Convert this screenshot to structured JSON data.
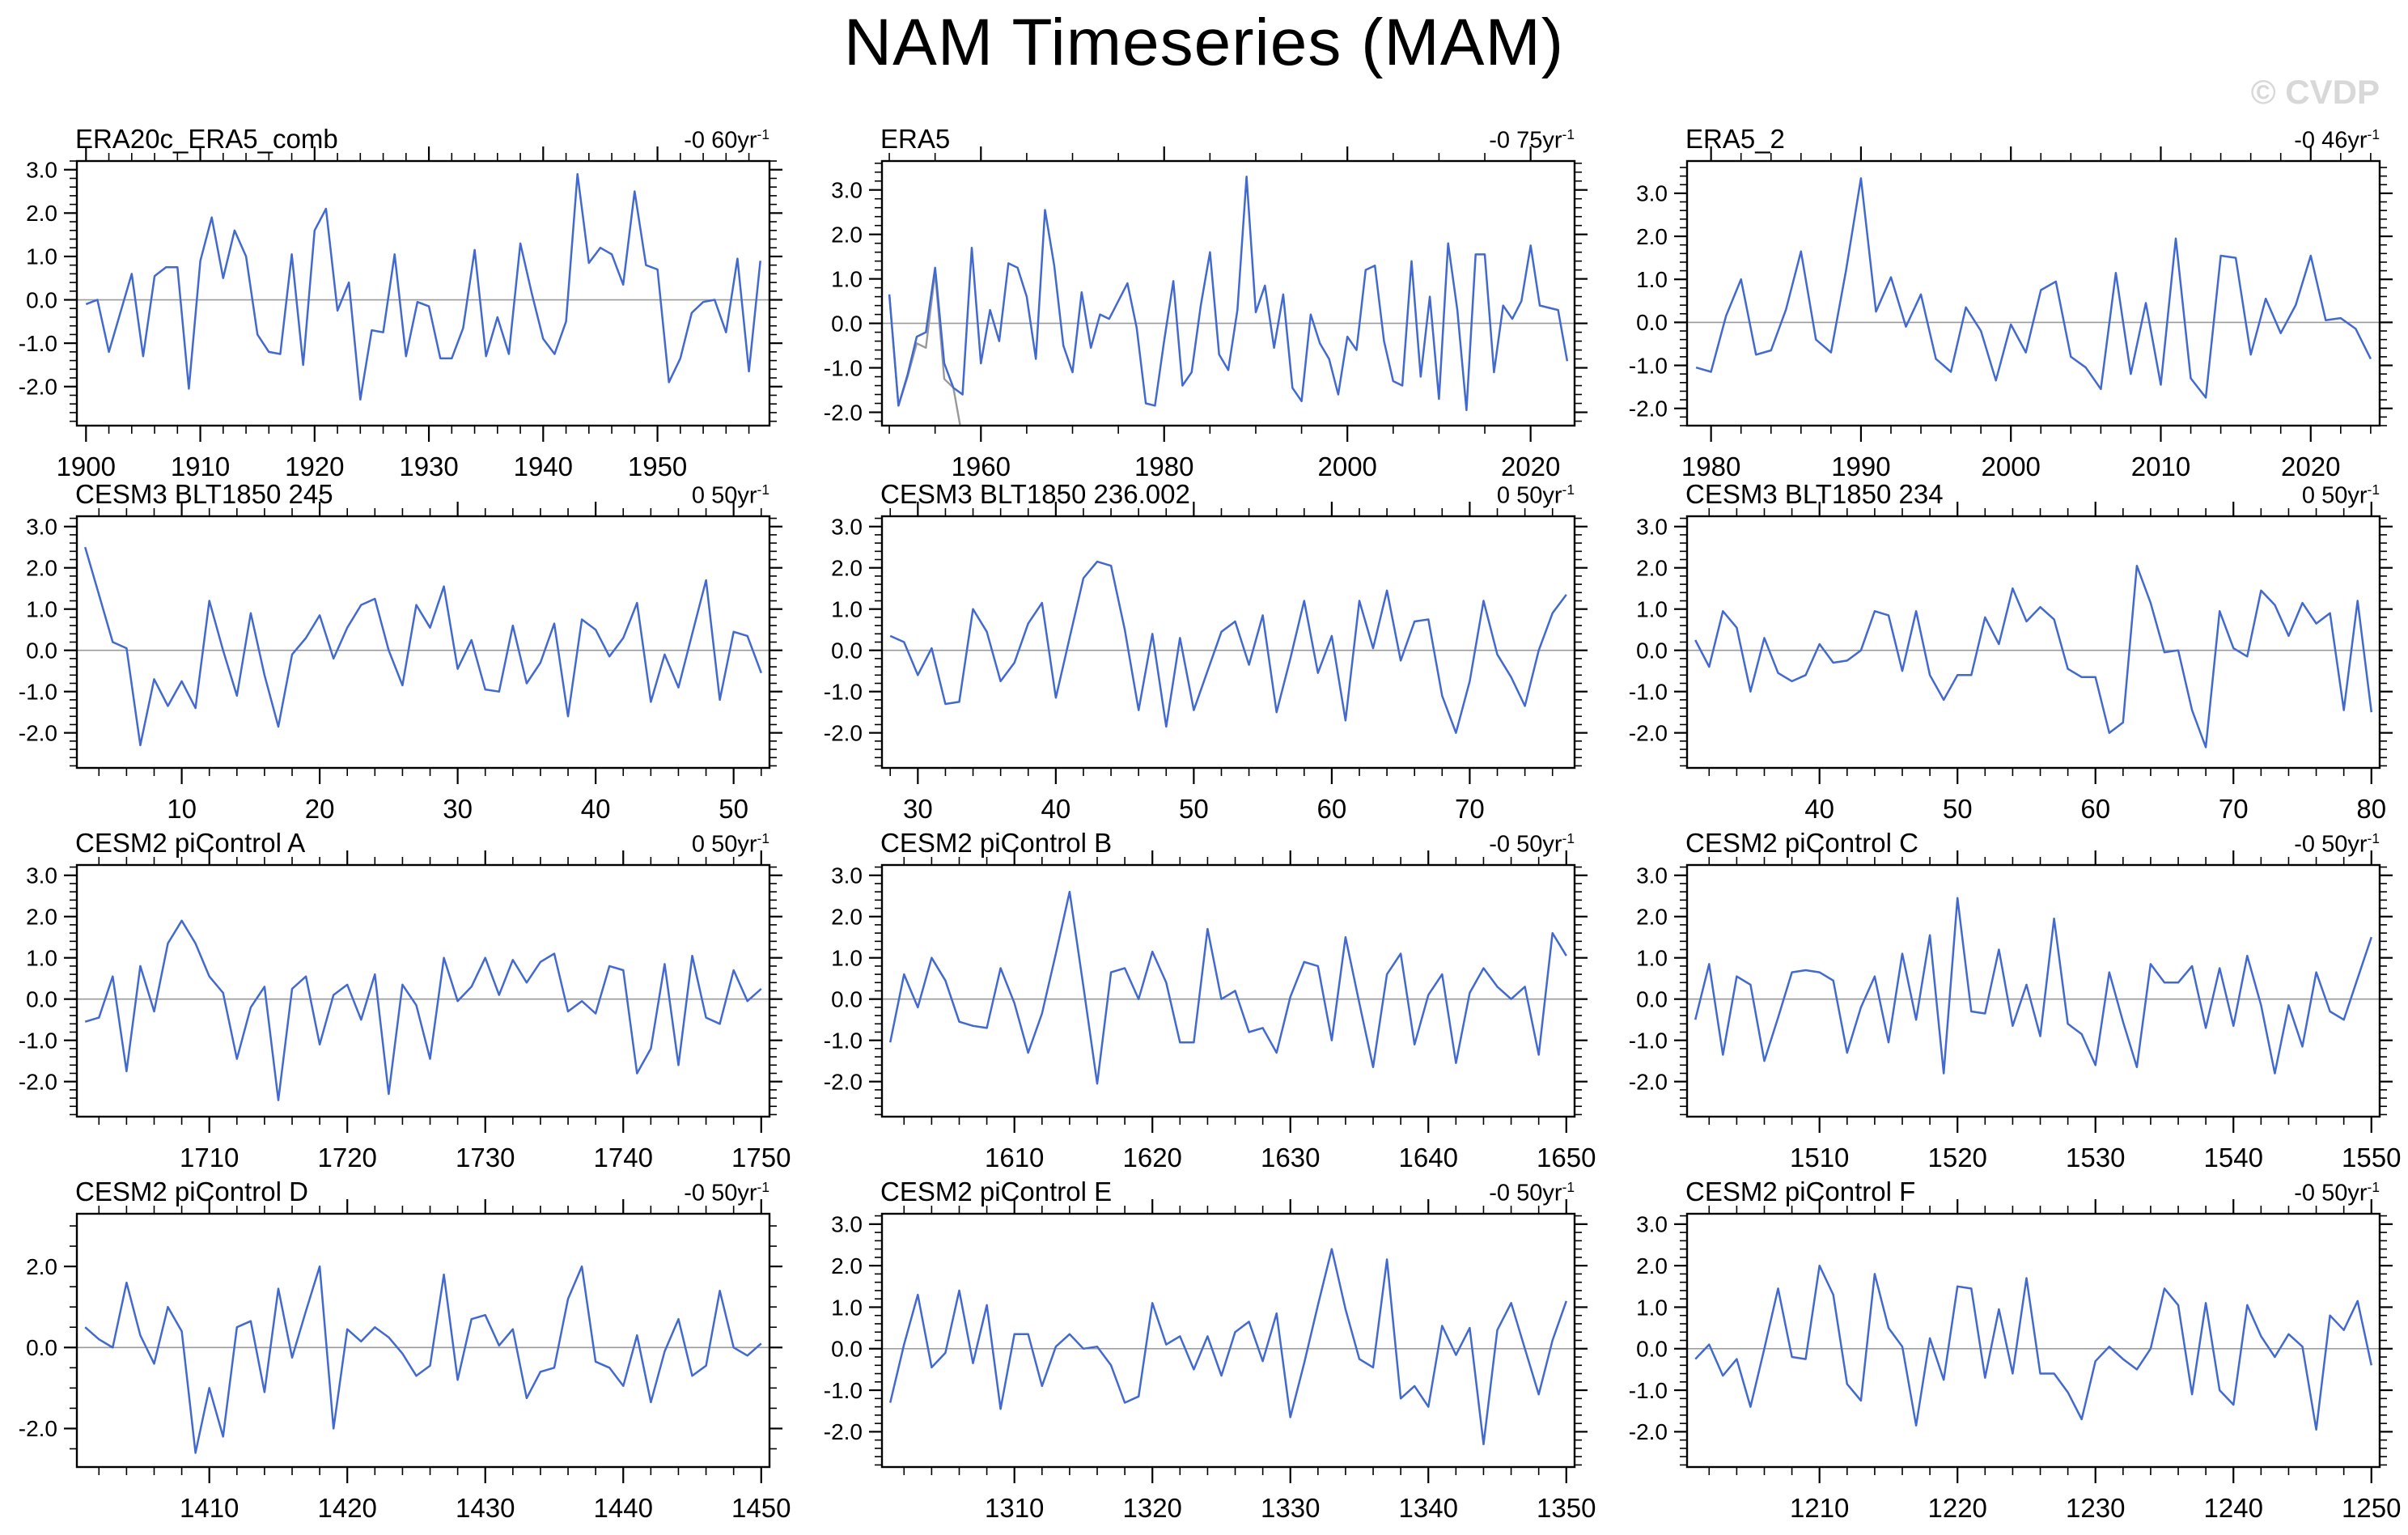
{
  "page": {
    "title": "NAM Timeseries (MAM)",
    "watermark": "© CVDP"
  },
  "colors": {
    "line": "#4169d0",
    "overlay_line": "#999999",
    "zero_line": "#9a9a9a",
    "frame": "#000000",
    "text": "#000000",
    "watermark": "#d8d8d8",
    "background": "#ffffff"
  },
  "chart_data": [
    {
      "type": "line",
      "title": "ERA20c_ERA5_comb",
      "trend": {
        "text": "-0 60yr",
        "sup": "-1"
      },
      "x_start": 1900,
      "xlim": [
        1899.2,
        1959.8
      ],
      "x_major_ticks": [
        1900,
        1910,
        1920,
        1930,
        1940,
        1950
      ],
      "x_minor_step": 2,
      "ylim": [
        -2.9,
        3.2
      ],
      "y_labeled_ticks": [
        3,
        2,
        1,
        0,
        -1,
        -2
      ],
      "y_tick_labels": [
        "3.0",
        "2.0",
        "1.0",
        "0.0",
        "-1.0",
        "-2.0"
      ],
      "y_minor_step": 0.2,
      "zero_line": true,
      "values": [
        -0.1,
        0.0,
        -1.2,
        -0.3,
        0.6,
        -1.3,
        0.55,
        0.75,
        0.75,
        -2.05,
        0.9,
        1.9,
        0.5,
        1.6,
        1.0,
        -0.8,
        -1.2,
        -1.25,
        1.05,
        -1.5,
        1.6,
        2.1,
        -0.25,
        0.4,
        -2.3,
        -0.7,
        -0.75,
        1.05,
        -1.3,
        -0.05,
        -0.15,
        -1.35,
        -1.35,
        -0.65,
        1.15,
        -1.3,
        -0.4,
        -1.25,
        1.3,
        0.15,
        -0.9,
        -1.25,
        -0.5,
        2.9,
        0.85,
        1.2,
        1.05,
        0.35,
        2.5,
        0.8,
        0.7,
        -1.9,
        -1.35,
        -0.3,
        -0.05,
        0.0,
        -0.75,
        0.95,
        -1.65,
        0.9
      ]
    },
    {
      "type": "line",
      "title": "ERA5",
      "trend": {
        "text": "-0 75yr",
        "sup": "-1"
      },
      "x_start": 1950,
      "xlim": [
        1949.2,
        2024.8
      ],
      "x_major_ticks": [
        1960,
        1980,
        2000,
        2020
      ],
      "x_minor_step": 5,
      "ylim": [
        -2.3,
        3.65
      ],
      "y_labeled_ticks": [
        3,
        2,
        1,
        0,
        -1,
        -2
      ],
      "y_tick_labels": [
        "3.0",
        "2.0",
        "1.0",
        "0.0",
        "-1.0",
        "-2.0"
      ],
      "y_minor_step": 0.2,
      "zero_line": true,
      "values": [
        0.65,
        -1.85,
        -1.15,
        -0.3,
        -0.2,
        1.25,
        -0.9,
        -1.45,
        -1.6,
        1.7,
        -0.9,
        0.3,
        -0.4,
        1.35,
        1.25,
        0.6,
        -0.8,
        2.55,
        1.3,
        -0.5,
        -1.1,
        0.7,
        -0.55,
        0.2,
        0.1,
        0.5,
        0.9,
        -0.1,
        -1.8,
        -1.85,
        -0.4,
        0.95,
        -1.4,
        -1.1,
        0.4,
        1.6,
        -0.7,
        -1.05,
        0.3,
        3.3,
        0.25,
        0.85,
        -0.55,
        0.65,
        -1.45,
        -1.75,
        0.2,
        -0.45,
        -0.8,
        -1.6,
        -0.3,
        -0.6,
        1.2,
        1.3,
        -0.4,
        -1.3,
        -1.4,
        1.4,
        -1.2,
        0.6,
        -1.7,
        1.8,
        0.3,
        -1.95,
        1.55,
        1.55,
        -1.1,
        0.4,
        0.1,
        0.5,
        1.75,
        0.4,
        0.35,
        0.3,
        -0.85
      ],
      "overlay": {
        "name": "era20c-overlap-segment",
        "x_start": 1950,
        "values": [
          0.65,
          -1.85,
          -1.2,
          -0.45,
          -0.55,
          1.15,
          -1.25,
          -1.45,
          -2.6
        ]
      }
    },
    {
      "type": "line",
      "title": "ERA5_2",
      "trend": {
        "text": "-0 46yr",
        "sup": "-1"
      },
      "x_start": 1979,
      "xlim": [
        1978.4,
        2024.6
      ],
      "x_major_ticks": [
        1980,
        1990,
        2000,
        2010,
        2020
      ],
      "x_minor_step": 2,
      "ylim": [
        -2.4,
        3.75
      ],
      "y_labeled_ticks": [
        3,
        2,
        1,
        0,
        -1,
        -2
      ],
      "y_tick_labels": [
        "3.0",
        "2.0",
        "1.0",
        "0.0",
        "-1.0",
        "-2.0"
      ],
      "y_minor_step": 0.2,
      "zero_line": true,
      "values": [
        -1.05,
        -1.15,
        0.15,
        1.0,
        -0.75,
        -0.65,
        0.3,
        1.65,
        -0.4,
        -0.7,
        1.2,
        3.35,
        0.25,
        1.05,
        -0.1,
        0.65,
        -0.85,
        -1.15,
        0.35,
        -0.2,
        -1.35,
        -0.05,
        -0.7,
        0.75,
        0.95,
        -0.8,
        -1.05,
        -1.55,
        1.15,
        -1.2,
        0.45,
        -1.45,
        1.95,
        -1.3,
        -1.75,
        1.55,
        1.5,
        -0.75,
        0.55,
        -0.25,
        0.4,
        1.55,
        0.05,
        0.1,
        -0.15,
        -0.85
      ]
    },
    {
      "type": "line",
      "title": "CESM3 BLT1850 245",
      "trend": {
        "text": "0 50yr",
        "sup": "-1"
      },
      "x_start": 3,
      "xlim": [
        2.4,
        52.6
      ],
      "x_major_ticks": [
        10,
        20,
        30,
        40,
        50
      ],
      "x_minor_step": 2,
      "ylim": [
        -2.85,
        3.25
      ],
      "y_labeled_ticks": [
        3,
        2,
        1,
        0,
        -1,
        -2
      ],
      "y_tick_labels": [
        "3.0",
        "2.0",
        "1.0",
        "0.0",
        "-1.0",
        "-2.0"
      ],
      "y_minor_step": 0.2,
      "zero_line": true,
      "values": [
        2.5,
        1.35,
        0.2,
        0.05,
        -2.3,
        -0.7,
        -1.35,
        -0.75,
        -1.4,
        1.2,
        0.0,
        -1.1,
        0.9,
        -0.6,
        -1.85,
        -0.1,
        0.3,
        0.85,
        -0.2,
        0.55,
        1.1,
        1.25,
        0.0,
        -0.85,
        1.1,
        0.55,
        1.55,
        -0.45,
        0.25,
        -0.95,
        -1.0,
        0.6,
        -0.8,
        -0.3,
        0.65,
        -1.6,
        0.75,
        0.5,
        -0.15,
        0.3,
        1.15,
        -1.25,
        -0.1,
        -0.9,
        0.4,
        1.7,
        -1.2,
        0.45,
        0.35,
        -0.55
      ]
    },
    {
      "type": "line",
      "title": "CESM3 BLT1850 236.002",
      "trend": {
        "text": "0 50yr",
        "sup": "-1"
      },
      "x_start": 28,
      "xlim": [
        27.4,
        77.6
      ],
      "x_major_ticks": [
        30,
        40,
        50,
        60,
        70
      ],
      "x_minor_step": 2,
      "ylim": [
        -2.85,
        3.25
      ],
      "y_labeled_ticks": [
        3,
        2,
        1,
        0,
        -1,
        -2
      ],
      "y_tick_labels": [
        "3.0",
        "2.0",
        "1.0",
        "0.0",
        "-1.0",
        "-2.0"
      ],
      "y_minor_step": 0.2,
      "zero_line": true,
      "values": [
        0.35,
        0.2,
        -0.6,
        0.05,
        -1.3,
        -1.25,
        1.0,
        0.45,
        -0.75,
        -0.3,
        0.65,
        1.15,
        -1.15,
        0.3,
        1.75,
        2.15,
        2.05,
        0.5,
        -1.45,
        0.4,
        -1.85,
        0.3,
        -1.45,
        -0.5,
        0.45,
        0.7,
        -0.35,
        0.85,
        -1.5,
        -0.2,
        1.2,
        -0.55,
        0.35,
        -1.7,
        1.2,
        0.05,
        1.45,
        -0.25,
        0.7,
        0.75,
        -1.1,
        -2.0,
        -0.75,
        1.2,
        -0.1,
        -0.65,
        -1.35,
        0.0,
        0.9,
        1.35
      ]
    },
    {
      "type": "line",
      "title": "CESM3 BLT1850 234",
      "trend": {
        "text": "0 50yr",
        "sup": "-1"
      },
      "x_start": 31,
      "xlim": [
        30.4,
        80.6
      ],
      "x_major_ticks": [
        40,
        50,
        60,
        70,
        80
      ],
      "x_minor_step": 2,
      "ylim": [
        -2.85,
        3.25
      ],
      "y_labeled_ticks": [
        3,
        2,
        1,
        0,
        -1,
        -2
      ],
      "y_tick_labels": [
        "3.0",
        "2.0",
        "1.0",
        "0.0",
        "-1.0",
        "-2.0"
      ],
      "y_minor_step": 0.2,
      "zero_line": true,
      "values": [
        0.25,
        -0.4,
        0.95,
        0.55,
        -1.0,
        0.3,
        -0.55,
        -0.75,
        -0.6,
        0.15,
        -0.3,
        -0.25,
        0.0,
        0.95,
        0.85,
        -0.5,
        0.95,
        -0.6,
        -1.2,
        -0.6,
        -0.6,
        0.8,
        0.15,
        1.5,
        0.7,
        1.05,
        0.75,
        -0.45,
        -0.65,
        -0.65,
        -2.0,
        -1.75,
        2.05,
        1.15,
        -0.05,
        0.0,
        -1.45,
        -2.35,
        0.95,
        0.05,
        -0.15,
        1.45,
        1.1,
        0.35,
        1.15,
        0.65,
        0.9,
        -1.45,
        1.2,
        -1.5
      ]
    },
    {
      "type": "line",
      "title": "CESM2 piControl A",
      "trend": {
        "text": "0 50yr",
        "sup": "-1"
      },
      "x_start": 1701,
      "xlim": [
        1700.4,
        1750.6
      ],
      "x_major_ticks": [
        1710,
        1720,
        1730,
        1740,
        1750
      ],
      "x_minor_step": 2,
      "ylim": [
        -2.85,
        3.25
      ],
      "y_labeled_ticks": [
        3,
        2,
        1,
        0,
        -1,
        -2
      ],
      "y_tick_labels": [
        "3.0",
        "2.0",
        "1.0",
        "0.0",
        "-1.0",
        "-2.0"
      ],
      "y_minor_step": 0.2,
      "zero_line": true,
      "values": [
        -0.55,
        -0.45,
        0.55,
        -1.75,
        0.8,
        -0.3,
        1.35,
        1.9,
        1.35,
        0.55,
        0.15,
        -1.45,
        -0.2,
        0.3,
        -2.45,
        0.25,
        0.55,
        -1.1,
        0.1,
        0.35,
        -0.5,
        0.6,
        -2.3,
        0.35,
        -0.15,
        -1.45,
        1.0,
        -0.05,
        0.3,
        1.0,
        0.1,
        0.95,
        0.4,
        0.9,
        1.1,
        -0.3,
        -0.05,
        -0.35,
        0.8,
        0.7,
        -1.8,
        -1.2,
        0.85,
        -1.6,
        1.05,
        -0.45,
        -0.6,
        0.7,
        -0.05,
        0.25
      ]
    },
    {
      "type": "line",
      "title": "CESM2 piControl B",
      "trend": {
        "text": "-0 50yr",
        "sup": "-1"
      },
      "x_start": 1601,
      "xlim": [
        1600.4,
        1650.6
      ],
      "x_major_ticks": [
        1610,
        1620,
        1630,
        1640,
        1650
      ],
      "x_minor_step": 2,
      "ylim": [
        -2.85,
        3.25
      ],
      "y_labeled_ticks": [
        3,
        2,
        1,
        0,
        -1,
        -2
      ],
      "y_tick_labels": [
        "3.0",
        "2.0",
        "1.0",
        "0.0",
        "-1.0",
        "-2.0"
      ],
      "y_minor_step": 0.2,
      "zero_line": true,
      "values": [
        -1.05,
        0.6,
        -0.2,
        1.0,
        0.45,
        -0.55,
        -0.65,
        -0.7,
        0.75,
        -0.1,
        -1.3,
        -0.35,
        1.1,
        2.6,
        0.3,
        -2.05,
        0.65,
        0.75,
        0.0,
        1.15,
        0.4,
        -1.05,
        -1.05,
        1.7,
        0.0,
        0.2,
        -0.8,
        -0.7,
        -1.3,
        0.05,
        0.9,
        0.8,
        -1.0,
        1.5,
        -0.1,
        -1.65,
        0.6,
        1.1,
        -1.1,
        0.1,
        0.6,
        -1.55,
        0.15,
        0.75,
        0.3,
        0.0,
        0.3,
        -1.35,
        1.6,
        1.05
      ]
    },
    {
      "type": "line",
      "title": "CESM2 piControl C",
      "trend": {
        "text": "-0 50yr",
        "sup": "-1"
      },
      "x_start": 1501,
      "xlim": [
        1500.4,
        1550.6
      ],
      "x_major_ticks": [
        1510,
        1520,
        1530,
        1540,
        1550
      ],
      "x_minor_step": 2,
      "ylim": [
        -2.85,
        3.25
      ],
      "y_labeled_ticks": [
        3,
        2,
        1,
        0,
        -1,
        -2
      ],
      "y_tick_labels": [
        "3.0",
        "2.0",
        "1.0",
        "0.0",
        "-1.0",
        "-2.0"
      ],
      "y_minor_step": 0.2,
      "zero_line": true,
      "values": [
        -0.5,
        0.85,
        -1.35,
        0.55,
        0.35,
        -1.5,
        -0.45,
        0.65,
        0.7,
        0.65,
        0.45,
        -1.3,
        -0.2,
        0.55,
        -1.05,
        1.1,
        -0.5,
        1.55,
        -1.8,
        2.45,
        -0.3,
        -0.35,
        1.2,
        -0.65,
        0.35,
        -0.9,
        1.95,
        -0.6,
        -0.85,
        -1.6,
        0.65,
        -0.55,
        -1.65,
        0.85,
        0.4,
        0.4,
        0.8,
        -0.7,
        0.75,
        -0.65,
        1.05,
        -0.15,
        -1.8,
        -0.15,
        -1.15,
        0.65,
        -0.3,
        -0.5,
        0.5,
        1.5
      ]
    },
    {
      "type": "line",
      "title": "CESM2 piControl D",
      "trend": {
        "text": "-0 50yr",
        "sup": "-1"
      },
      "x_start": 1401,
      "xlim": [
        1400.4,
        1450.6
      ],
      "x_major_ticks": [
        1410,
        1420,
        1430,
        1440,
        1450
      ],
      "x_minor_step": 2,
      "ylim": [
        -2.95,
        3.3
      ],
      "y_labeled_ticks": [
        2,
        0,
        -2
      ],
      "y_tick_labels": [
        "2.0",
        "0.0",
        "-2.0"
      ],
      "y_minor_step": 0.5,
      "zero_line": true,
      "values": [
        0.5,
        0.2,
        0.0,
        1.6,
        0.3,
        -0.4,
        1.0,
        0.4,
        -2.6,
        -1.0,
        -2.2,
        0.5,
        0.65,
        -1.1,
        1.45,
        -0.25,
        0.9,
        2.0,
        -2.0,
        0.45,
        0.15,
        0.5,
        0.25,
        -0.15,
        -0.7,
        -0.45,
        1.8,
        -0.8,
        0.7,
        0.8,
        0.05,
        0.45,
        -1.25,
        -0.6,
        -0.5,
        1.2,
        2.0,
        -0.35,
        -0.5,
        -0.95,
        0.3,
        -1.35,
        -0.1,
        0.7,
        -0.7,
        -0.45,
        1.4,
        0.0,
        -0.2,
        0.1
      ]
    },
    {
      "type": "line",
      "title": "CESM2 piControl E",
      "trend": {
        "text": "-0 50yr",
        "sup": "-1"
      },
      "x_start": 1301,
      "xlim": [
        1300.4,
        1350.6
      ],
      "x_major_ticks": [
        1310,
        1320,
        1330,
        1340,
        1350
      ],
      "x_minor_step": 2,
      "ylim": [
        -2.85,
        3.25
      ],
      "y_labeled_ticks": [
        3,
        2,
        1,
        0,
        -1,
        -2
      ],
      "y_tick_labels": [
        "3.0",
        "2.0",
        "1.0",
        "0.0",
        "-1.0",
        "-2.0"
      ],
      "y_minor_step": 0.2,
      "zero_line": true,
      "values": [
        -1.3,
        0.1,
        1.3,
        -0.45,
        -0.1,
        1.4,
        -0.35,
        1.05,
        -1.45,
        0.35,
        0.35,
        -0.9,
        0.05,
        0.35,
        0.0,
        0.05,
        -0.4,
        -1.3,
        -1.15,
        1.1,
        0.1,
        0.3,
        -0.5,
        0.3,
        -0.65,
        0.4,
        0.65,
        -0.3,
        0.85,
        -1.65,
        -0.35,
        1.05,
        2.4,
        0.95,
        -0.25,
        -0.45,
        2.15,
        -1.2,
        -0.9,
        -1.4,
        0.55,
        -0.15,
        0.5,
        -2.3,
        0.45,
        1.1,
        0.0,
        -1.1,
        0.2,
        1.15
      ]
    },
    {
      "type": "line",
      "title": "CESM2 piControl F",
      "trend": {
        "text": "-0 50yr",
        "sup": "-1"
      },
      "x_start": 1201,
      "xlim": [
        1200.4,
        1250.6
      ],
      "x_major_ticks": [
        1210,
        1220,
        1230,
        1240,
        1250
      ],
      "x_minor_step": 2,
      "ylim": [
        -2.85,
        3.25
      ],
      "y_labeled_ticks": [
        3,
        2,
        1,
        0,
        -1,
        -2
      ],
      "y_tick_labels": [
        "3.0",
        "2.0",
        "1.0",
        "0.0",
        "-1.0",
        "-2.0"
      ],
      "y_minor_step": 0.2,
      "zero_line": true,
      "values": [
        -0.25,
        0.1,
        -0.65,
        -0.25,
        -1.4,
        0.0,
        1.45,
        -0.2,
        -0.25,
        2.0,
        1.3,
        -0.85,
        -1.25,
        1.8,
        0.5,
        0.05,
        -1.85,
        0.25,
        -0.75,
        1.5,
        1.45,
        -0.7,
        0.95,
        -0.6,
        1.7,
        -0.6,
        -0.6,
        -1.05,
        -1.7,
        -0.3,
        0.05,
        -0.25,
        -0.5,
        0.0,
        1.45,
        1.05,
        -1.1,
        1.1,
        -1.0,
        -1.35,
        1.05,
        0.3,
        -0.2,
        0.35,
        0.05,
        -1.95,
        0.8,
        0.45,
        1.15,
        -0.4
      ]
    }
  ]
}
